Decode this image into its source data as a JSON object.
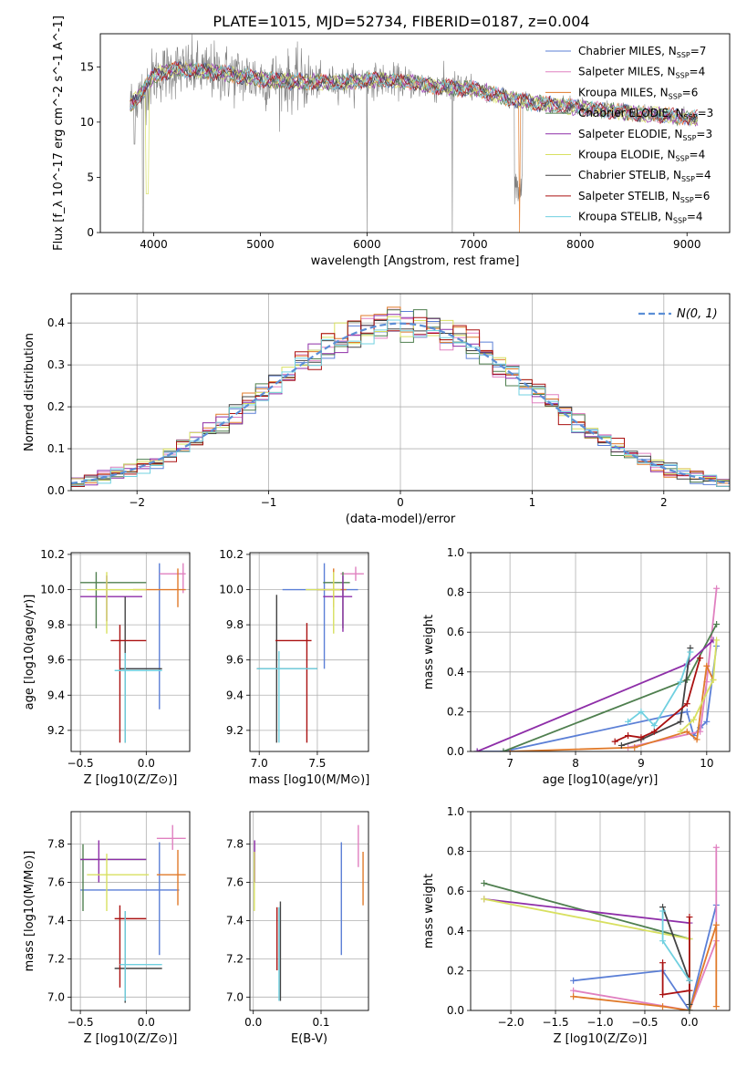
{
  "figure": {
    "title": "PLATE=1015, MJD=52734, FIBERID=0187, z=0.004",
    "legend": [
      {
        "label": "Chabrier MILES, N_SSP=7",
        "color": "#5b7fd6"
      },
      {
        "label": "Salpeter MILES, N_SSP=4",
        "color": "#e080c0"
      },
      {
        "label": "Kroupa MILES, N_SSP=6",
        "color": "#e07a2a"
      },
      {
        "label": "Chabrier ELODIE, N_SSP=3",
        "color": "#4f7f4f"
      },
      {
        "label": "Salpeter ELODIE, N_SSP=3",
        "color": "#8e2ea8"
      },
      {
        "label": "Kroupa ELODIE, N_SSP=4",
        "color": "#d8e060"
      },
      {
        "label": "Chabrier STELIB, N_SSP=4",
        "color": "#444444"
      },
      {
        "label": "Salpeter STELIB, N_SSP=6",
        "color": "#aa1111"
      },
      {
        "label": "Kroupa STELIB, N_SSP=4",
        "color": "#70d0e0"
      }
    ],
    "data_color": "#808080"
  },
  "chart_data": [
    {
      "id": "spectrum",
      "type": "line",
      "xlabel": "wavelength [Angstrom, rest frame]",
      "ylabel": "Flux [f_λ 10^-17 erg cm^-2 s^-1 A^-1]",
      "xlim": [
        3500,
        9400
      ],
      "ylim": [
        0,
        18
      ],
      "xticks": [
        4000,
        5000,
        6000,
        7000,
        8000,
        9000
      ],
      "yticks": [
        0,
        5,
        10,
        15
      ],
      "continuum": {
        "x": [
          3780,
          3900,
          4000,
          4200,
          4400,
          4600,
          4800,
          5000,
          5200,
          5400,
          5600,
          5800,
          6000,
          6200,
          6400,
          6600,
          6800,
          7000,
          7200,
          7400,
          7600,
          7800,
          8000,
          8200,
          8400,
          8600,
          8800,
          9000,
          9100
        ],
        "y": [
          11.5,
          12.8,
          14.2,
          14.8,
          14.6,
          14.5,
          14.2,
          13.9,
          13.7,
          13.7,
          13.6,
          13.6,
          13.8,
          13.8,
          13.6,
          13.3,
          13.1,
          13.0,
          12.5,
          12.0,
          11.7,
          11.5,
          11.3,
          11.1,
          10.9,
          10.7,
          10.6,
          10.4,
          10.3
        ]
      },
      "grid": false
    },
    {
      "id": "residuals",
      "type": "step",
      "xlabel": "(data-model)/error",
      "ylabel": "Normed distribution",
      "xlim": [
        -2.5,
        2.5
      ],
      "ylim": [
        0,
        0.47
      ],
      "xticks": [
        -2,
        -1,
        0,
        1,
        2
      ],
      "yticks": [
        0.0,
        0.1,
        0.2,
        0.3,
        0.4
      ],
      "gaussian_label": "N(0, 1)",
      "grid": true
    },
    {
      "id": "age-vs-z",
      "type": "errorbar",
      "xlabel": "Z [log10(Z/Z⊙)]",
      "ylabel": "age [log10(age/yr)]",
      "xlim": [
        -0.57,
        0.33
      ],
      "ylim": [
        9.08,
        10.21
      ],
      "xticks": [
        -0.5,
        0.0
      ],
      "yticks": [
        9.2,
        9.4,
        9.6,
        9.8,
        10.0,
        10.2
      ],
      "points": [
        {
          "model": 0,
          "x": 0.1,
          "y": 9.55,
          "xe": [
            -0.17,
            0.1
          ],
          "ye": [
            9.32,
            10.15
          ]
        },
        {
          "model": 1,
          "x": 0.28,
          "y": 10.09,
          "xe": [
            0.1,
            0.3
          ],
          "ye": [
            9.98,
            10.15
          ]
        },
        {
          "model": 2,
          "x": 0.24,
          "y": 10.0,
          "xe": [
            -0.1,
            0.3
          ],
          "ye": [
            9.9,
            10.12
          ]
        },
        {
          "model": 3,
          "x": -0.38,
          "y": 10.04,
          "xe": [
            -0.5,
            0.0
          ],
          "ye": [
            9.78,
            10.1
          ]
        },
        {
          "model": 4,
          "x": -0.3,
          "y": 9.96,
          "xe": [
            -0.5,
            -0.03
          ],
          "ye": [
            9.82,
            10.08
          ]
        },
        {
          "model": 5,
          "x": -0.3,
          "y": 10.0,
          "xe": [
            -0.45,
            0.0
          ],
          "ye": [
            9.75,
            10.1
          ]
        },
        {
          "model": 6,
          "x": -0.16,
          "y": 9.55,
          "xe": [
            -0.2,
            0.12
          ],
          "ye": [
            9.13,
            9.96
          ]
        },
        {
          "model": 7,
          "x": -0.2,
          "y": 9.71,
          "xe": [
            -0.27,
            0.0
          ],
          "ye": [
            9.13,
            9.8
          ]
        },
        {
          "model": 8,
          "x": -0.16,
          "y": 9.54,
          "xe": [
            -0.24,
            0.12
          ],
          "ye": [
            9.13,
            9.64
          ]
        }
      ]
    },
    {
      "id": "age-vs-mass",
      "type": "errorbar",
      "xlabel": "mass [log10(M/M⊙)]",
      "ylabel": "",
      "xlim": [
        6.92,
        7.94
      ],
      "ylim": [
        9.08,
        10.21
      ],
      "xticks": [
        7.0,
        7.5
      ],
      "yticks": [
        9.2,
        9.4,
        9.6,
        9.8,
        10.0,
        10.2
      ],
      "points": [
        {
          "model": 0,
          "x": 7.56,
          "y": 10.0,
          "xe": [
            7.2,
            7.85
          ],
          "ye": [
            9.55,
            10.15
          ]
        },
        {
          "model": 1,
          "x": 7.83,
          "y": 10.09,
          "xe": [
            7.7,
            7.9
          ],
          "ye": [
            10.05,
            10.13
          ]
        },
        {
          "model": 2,
          "x": 7.64,
          "y": 10.0,
          "xe": [
            7.5,
            7.75
          ],
          "ye": [
            9.9,
            10.12
          ]
        },
        {
          "model": 3,
          "x": 7.72,
          "y": 10.04,
          "xe": [
            7.55,
            7.78
          ],
          "ye": [
            9.78,
            10.1
          ]
        },
        {
          "model": 4,
          "x": 7.72,
          "y": 9.96,
          "xe": [
            7.55,
            7.8
          ],
          "ye": [
            9.76,
            10.08
          ]
        },
        {
          "model": 5,
          "x": 7.64,
          "y": 10.0,
          "xe": [
            7.4,
            7.7
          ],
          "ye": [
            9.75,
            10.1
          ]
        },
        {
          "model": 6,
          "x": 7.15,
          "y": 9.55,
          "xe": [
            6.98,
            7.5
          ],
          "ye": [
            9.13,
            9.97
          ]
        },
        {
          "model": 7,
          "x": 7.41,
          "y": 9.71,
          "xe": [
            7.14,
            7.45
          ],
          "ye": [
            9.13,
            9.81
          ]
        },
        {
          "model": 8,
          "x": 7.17,
          "y": 9.55,
          "xe": [
            6.98,
            7.5
          ],
          "ye": [
            9.13,
            9.65
          ]
        }
      ]
    },
    {
      "id": "massweight-vs-age",
      "type": "line",
      "xlabel": "age [log10(age/yr)]",
      "ylabel": "mass weight",
      "xlim": [
        6.4,
        10.35
      ],
      "ylim": [
        0,
        1.0
      ],
      "xticks": [
        7,
        8,
        9,
        10
      ],
      "yticks": [
        0.0,
        0.2,
        0.4,
        0.6,
        0.8,
        1.0
      ],
      "grid": true,
      "series": [
        {
          "model": 0,
          "x": [
            6.5,
            6.9,
            9.7,
            9.8,
            9.9,
            10.0,
            10.15
          ],
          "y": [
            0.0,
            0.0,
            0.2,
            0.08,
            0.12,
            0.15,
            0.53
          ]
        },
        {
          "model": 1,
          "x": [
            8.8,
            9.9,
            10.0,
            10.15
          ],
          "y": [
            0.02,
            0.1,
            0.35,
            0.82
          ]
        },
        {
          "model": 2,
          "x": [
            7.0,
            8.9,
            9.7,
            9.85,
            10.0,
            10.1
          ],
          "y": [
            0.0,
            0.02,
            0.1,
            0.06,
            0.43,
            0.36
          ]
        },
        {
          "model": 3,
          "x": [
            6.9,
            9.7,
            10.15
          ],
          "y": [
            0.0,
            0.36,
            0.64
          ]
        },
        {
          "model": 4,
          "x": [
            6.5,
            9.7,
            10.1
          ],
          "y": [
            0.0,
            0.44,
            0.56
          ]
        },
        {
          "model": 5,
          "x": [
            9.6,
            9.8,
            10.1,
            10.15
          ],
          "y": [
            0.1,
            0.16,
            0.36,
            0.56
          ]
        },
        {
          "model": 6,
          "x": [
            8.7,
            9.0,
            9.6,
            9.75
          ],
          "y": [
            0.03,
            0.06,
            0.15,
            0.52
          ]
        },
        {
          "model": 7,
          "x": [
            8.6,
            8.8,
            9.0,
            9.2,
            9.7,
            9.9
          ],
          "y": [
            0.05,
            0.08,
            0.07,
            0.1,
            0.24,
            0.47
          ]
        },
        {
          "model": 8,
          "x": [
            8.8,
            9.0,
            9.2,
            9.6,
            9.75
          ],
          "y": [
            0.15,
            0.2,
            0.13,
            0.35,
            0.5
          ]
        }
      ]
    },
    {
      "id": "mass-vs-z",
      "type": "errorbar",
      "xlabel": "Z [log10(Z/Z⊙)]",
      "ylabel": "mass [log10(M/M⊙)]",
      "xlim": [
        -0.57,
        0.33
      ],
      "ylim": [
        6.93,
        7.97
      ],
      "xticks": [
        -0.5,
        0.0
      ],
      "yticks": [
        7.0,
        7.2,
        7.4,
        7.6,
        7.8
      ],
      "points": [
        {
          "model": 0,
          "x": 0.1,
          "y": 7.56,
          "xe": [
            -0.5,
            0.25
          ],
          "ye": [
            7.22,
            7.81
          ]
        },
        {
          "model": 1,
          "x": 0.2,
          "y": 7.83,
          "xe": [
            0.08,
            0.3
          ],
          "ye": [
            7.77,
            7.9
          ]
        },
        {
          "model": 2,
          "x": 0.24,
          "y": 7.64,
          "xe": [
            0.08,
            0.3
          ],
          "ye": [
            7.48,
            7.77
          ]
        },
        {
          "model": 3,
          "x": -0.48,
          "y": 7.72,
          "xe": [
            -0.5,
            0.0
          ],
          "ye": [
            7.45,
            7.8
          ]
        },
        {
          "model": 4,
          "x": -0.36,
          "y": 7.72,
          "xe": [
            -0.5,
            0.0
          ],
          "ye": [
            7.6,
            7.82
          ]
        },
        {
          "model": 5,
          "x": -0.3,
          "y": 7.64,
          "xe": [
            -0.45,
            0.02
          ],
          "ye": [
            7.45,
            7.75
          ]
        },
        {
          "model": 6,
          "x": -0.16,
          "y": 7.15,
          "xe": [
            -0.24,
            0.12
          ],
          "ye": [
            6.97,
            7.45
          ]
        },
        {
          "model": 7,
          "x": -0.2,
          "y": 7.41,
          "xe": [
            -0.24,
            0.0
          ],
          "ye": [
            7.05,
            7.48
          ]
        },
        {
          "model": 8,
          "x": -0.16,
          "y": 7.17,
          "xe": [
            -0.2,
            0.12
          ],
          "ye": [
            6.98,
            7.45
          ]
        }
      ]
    },
    {
      "id": "mass-vs-ebv",
      "type": "errorbar",
      "xlabel": "E(B-V)",
      "ylabel": "",
      "xlim": [
        -0.005,
        0.17
      ],
      "ylim": [
        6.93,
        7.97
      ],
      "xticks": [
        0.0,
        0.1
      ],
      "yticks": [
        7.0,
        7.2,
        7.4,
        7.6,
        7.8
      ],
      "points": [
        {
          "model": 0,
          "x": 0.13,
          "y": 7.56,
          "ye": [
            7.22,
            7.81
          ]
        },
        {
          "model": 1,
          "x": 0.155,
          "y": 7.83,
          "ye": [
            7.68,
            7.9
          ]
        },
        {
          "model": 2,
          "x": 0.162,
          "y": 7.64,
          "ye": [
            7.48,
            7.76
          ]
        },
        {
          "model": 4,
          "x": 0.002,
          "y": 7.72,
          "ye": [
            7.6,
            7.82
          ]
        },
        {
          "model": 5,
          "x": 0.0015,
          "y": 7.64,
          "ye": [
            7.45,
            7.76
          ]
        },
        {
          "model": 6,
          "x": 0.04,
          "y": 7.15,
          "ye": [
            6.98,
            7.5
          ]
        },
        {
          "model": 7,
          "x": 0.035,
          "y": 7.41,
          "ye": [
            7.14,
            7.47
          ]
        },
        {
          "model": 8,
          "x": 0.038,
          "y": 7.17,
          "ye": [
            6.98,
            7.47
          ]
        }
      ]
    },
    {
      "id": "massweight-vs-z",
      "type": "line",
      "xlabel": "Z [log10(Z/Z⊙)]",
      "ylabel": "mass weight",
      "xlim": [
        -2.45,
        0.45
      ],
      "ylim": [
        0,
        1.0
      ],
      "xticks": [
        -2.0,
        -1.5,
        -1.0,
        -0.5,
        0.0
      ],
      "yticks": [
        0.0,
        0.2,
        0.4,
        0.6,
        0.8,
        1.0
      ],
      "grid": true,
      "series": [
        {
          "model": 0,
          "x": [
            -1.3,
            -0.3,
            0.0,
            0.3
          ],
          "y": [
            0.15,
            0.2,
            0.0,
            0.53
          ]
        },
        {
          "model": 1,
          "x": [
            -1.3,
            0.0,
            0.3,
            0.3
          ],
          "y": [
            0.1,
            0.0,
            0.35,
            0.82
          ]
        },
        {
          "model": 2,
          "x": [
            -1.3,
            -0.3,
            0.0,
            0.3,
            0.3
          ],
          "y": [
            0.07,
            0.02,
            0.0,
            0.43,
            0.02
          ]
        },
        {
          "model": 3,
          "x": [
            -2.3,
            0.0,
            0.0
          ],
          "y": [
            0.64,
            0.36,
            0.0
          ]
        },
        {
          "model": 4,
          "x": [
            -2.3,
            0.0
          ],
          "y": [
            0.56,
            0.44
          ]
        },
        {
          "model": 5,
          "x": [
            -2.3,
            0.0,
            0.0
          ],
          "y": [
            0.56,
            0.36,
            0.1
          ]
        },
        {
          "model": 6,
          "x": [
            -0.3,
            0.0,
            0.0
          ],
          "y": [
            0.52,
            0.15,
            0.03
          ]
        },
        {
          "model": 7,
          "x": [
            -0.3,
            -0.3,
            0.0,
            0.0
          ],
          "y": [
            0.24,
            0.08,
            0.1,
            0.47
          ]
        },
        {
          "model": 8,
          "x": [
            -0.3,
            -0.3,
            0.0
          ],
          "y": [
            0.5,
            0.35,
            0.15
          ]
        }
      ]
    }
  ]
}
